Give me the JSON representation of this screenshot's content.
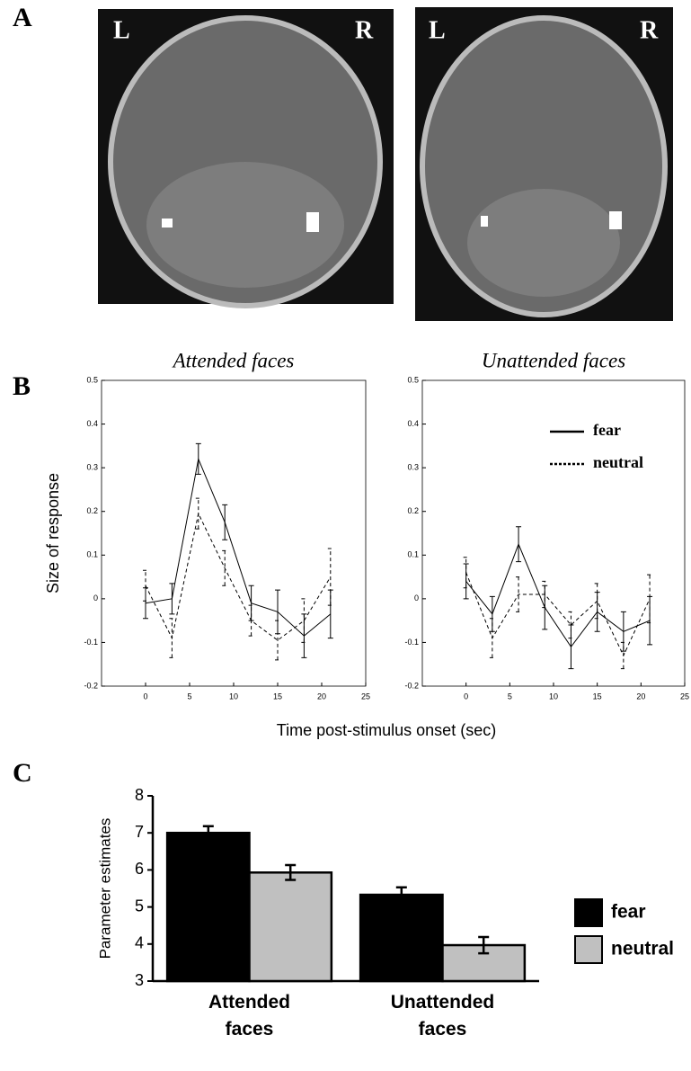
{
  "panel_labels": [
    "A",
    "B",
    "C"
  ],
  "brain_images": [
    {
      "left": "L",
      "right": "R"
    },
    {
      "left": "L",
      "right": "R"
    }
  ],
  "chart_data": [
    {
      "type": "line",
      "title": "Attended faces",
      "xlabel": "Time post-stimulus onset (sec)",
      "ylabel": "Size of response",
      "x": [
        0,
        3,
        6,
        9,
        12,
        15,
        18,
        21
      ],
      "xlim": [
        -5,
        25
      ],
      "xticks": [
        0,
        5,
        10,
        15,
        20,
        25
      ],
      "ylim": [
        -0.2,
        0.5
      ],
      "yticks": [
        -0.2,
        -0.1,
        0,
        0.1,
        0.2,
        0.3,
        0.4,
        0.5
      ],
      "legend": false,
      "series": [
        {
          "color": "#000000",
          "dash": "solid",
          "values": [
            -0.01,
            0.0,
            0.32,
            0.175,
            -0.01,
            -0.03,
            -0.085,
            -0.035
          ],
          "errors": [
            0.035,
            0.035,
            0.035,
            0.04,
            0.04,
            0.05,
            0.05,
            0.055
          ]
        },
        {
          "color": "#000000",
          "dash": "dashed",
          "values": [
            0.03,
            -0.09,
            0.195,
            0.07,
            -0.05,
            -0.095,
            -0.05,
            0.05
          ],
          "errors": [
            0.035,
            0.045,
            0.035,
            0.04,
            0.035,
            0.045,
            0.05,
            0.065
          ]
        }
      ]
    },
    {
      "type": "line",
      "title": "Unattended faces",
      "x": [
        0,
        3,
        6,
        9,
        12,
        15,
        18,
        21
      ],
      "xlim": [
        -5,
        25
      ],
      "xticks": [
        0,
        5,
        10,
        15,
        20,
        25
      ],
      "ylim": [
        -0.2,
        0.5
      ],
      "yticks": [
        -0.2,
        -0.1,
        0,
        0.1,
        0.2,
        0.3,
        0.4,
        0.5
      ],
      "legend": true,
      "series": [
        {
          "name": "fear",
          "color": "#000000",
          "dash": "solid",
          "values": [
            0.04,
            -0.035,
            0.125,
            -0.02,
            -0.11,
            -0.03,
            -0.075,
            -0.05
          ],
          "errors": [
            0.04,
            0.04,
            0.04,
            0.05,
            0.05,
            0.045,
            0.045,
            0.055
          ]
        },
        {
          "name": "neutral",
          "color": "#000000",
          "dash": "dashed",
          "values": [
            0.06,
            -0.09,
            0.01,
            0.01,
            -0.06,
            -0.005,
            -0.13,
            0.0
          ],
          "errors": [
            0.035,
            0.045,
            0.04,
            0.03,
            0.03,
            0.04,
            0.03,
            0.055
          ]
        }
      ]
    },
    {
      "type": "bar",
      "ylabel": "Parameter estimates",
      "categories": [
        "Attended faces",
        "Unattended faces"
      ],
      "ylim": [
        3,
        8
      ],
      "yticks": [
        3,
        4,
        5,
        6,
        7,
        8
      ],
      "legend": true,
      "series": [
        {
          "name": "fear",
          "color": "#000000",
          "values": [
            7.0,
            5.33
          ],
          "errors": [
            0.18,
            0.2
          ]
        },
        {
          "name": "neutral",
          "color": "#c0c0c0",
          "values": [
            5.93,
            3.97
          ],
          "errors": [
            0.2,
            0.22
          ]
        }
      ]
    }
  ]
}
